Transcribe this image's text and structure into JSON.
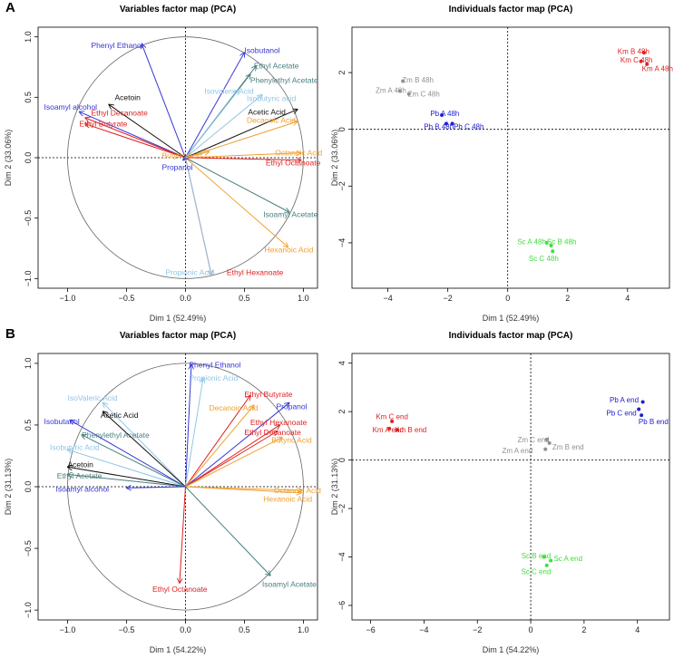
{
  "panels": [
    {
      "letter": "A"
    },
    {
      "letter": "B"
    }
  ],
  "chart_data": [
    {
      "id": "A-var",
      "type": "scatter",
      "kind": "variables",
      "title": "Variables factor map (PCA)",
      "xlabel": "Dim 1 (52.49%)",
      "ylabel": "Dim 2 (33.06%)",
      "xlim": [
        -1.25,
        1.12
      ],
      "ylim": [
        -1.08,
        1.08
      ],
      "xticks": [
        -1.0,
        -0.5,
        0.0,
        0.5,
        1.0
      ],
      "xtick_labels": [
        "−1.0",
        "−0.5",
        "0.0",
        "0.5",
        "1.0"
      ],
      "yticks": [
        -1.0,
        -0.5,
        0.0,
        0.5,
        1.0
      ],
      "ytick_labels": [
        "−1.0",
        "−0.5",
        "0.0",
        "0.5",
        "1.0"
      ],
      "circle": true,
      "arrows": [
        {
          "name": "Phenyl Ethanol",
          "x": -0.37,
          "y": 0.94,
          "color": "#3535d6",
          "lx": -0.8,
          "ly": 0.93
        },
        {
          "name": "Isobutanol",
          "x": 0.5,
          "y": 0.87,
          "color": "#3535d6",
          "lx": 0.5,
          "ly": 0.89
        },
        {
          "name": "Ethyl Acetate",
          "x": 0.6,
          "y": 0.76,
          "color": "#4a7f7f",
          "lx": 0.58,
          "ly": 0.76
        },
        {
          "name": "Phenylethyl Acetate",
          "x": 0.55,
          "y": 0.69,
          "color": "#4a7f7f",
          "lx": 0.55,
          "ly": 0.64
        },
        {
          "name": "Isovaleric Acid",
          "x": 0.45,
          "y": 0.56,
          "color": "#8fc6e6",
          "lx": 0.16,
          "ly": 0.55
        },
        {
          "name": "Isobutyric acid",
          "x": 0.65,
          "y": 0.52,
          "color": "#8fc6e6",
          "lx": 0.52,
          "ly": 0.49
        },
        {
          "name": "Acetic Acid",
          "x": 0.95,
          "y": 0.4,
          "color": "#111111",
          "lx": 0.53,
          "ly": 0.38
        },
        {
          "name": "Decanoic Acid",
          "x": 0.95,
          "y": 0.3,
          "color": "#f0a030",
          "lx": 0.52,
          "ly": 0.31
        },
        {
          "name": "Octanoic Acid",
          "x": 0.98,
          "y": 0.04,
          "color": "#f0a030",
          "lx": 0.76,
          "ly": 0.04
        },
        {
          "name": "Ethyl Octanoate",
          "x": 0.98,
          "y": -0.02,
          "color": "#e02020",
          "lx": 0.68,
          "ly": -0.04
        },
        {
          "name": "Isoamyl Acetate",
          "x": 0.88,
          "y": -0.45,
          "color": "#4a7f7f",
          "lx": 0.66,
          "ly": -0.47
        },
        {
          "name": "Hexanoic Acid",
          "x": 0.87,
          "y": -0.74,
          "color": "#f0a030",
          "lx": 0.67,
          "ly": -0.76
        },
        {
          "name": "Ethyl Hexanoate",
          "x": 0.22,
          "y": -0.97,
          "color": "#e02020",
          "lx": 0.35,
          "ly": -0.95
        },
        {
          "name": "Propionic Acid",
          "x": 0.22,
          "y": -0.97,
          "color": "#8fc6e6",
          "lx": -0.17,
          "ly": -0.95
        },
        {
          "name": "Acetoin",
          "x": -0.65,
          "y": 0.44,
          "color": "#111111",
          "lx": -0.6,
          "ly": 0.5
        },
        {
          "name": "Isoamyl alcohol",
          "x": -0.9,
          "y": 0.38,
          "color": "#3535d6",
          "lx": -1.2,
          "ly": 0.42
        },
        {
          "name": "Ethyl Decanoate",
          "x": -0.85,
          "y": 0.33,
          "color": "#e02020",
          "lx": -0.8,
          "ly": 0.37
        },
        {
          "name": "Ethyl Butyrate",
          "x": -0.85,
          "y": 0.28,
          "color": "#e02020",
          "lx": -0.9,
          "ly": 0.28
        },
        {
          "name": "Butyric Acid",
          "x": 0.2,
          "y": 0.05,
          "color": "#f0a030",
          "lx": -0.2,
          "ly": 0.02
        },
        {
          "name": "Propanol",
          "x": -0.02,
          "y": -0.02,
          "color": "#3535d6",
          "lx": -0.2,
          "ly": -0.08
        }
      ]
    },
    {
      "id": "A-ind",
      "type": "scatter",
      "kind": "individuals",
      "title": "Individuals factor map (PCA)",
      "xlabel": "Dim 1 (52.49%)",
      "ylabel": "Dim 2 (33.06%)",
      "xlim": [
        -5.2,
        5.4
      ],
      "ylim": [
        -5.6,
        3.6
      ],
      "xticks": [
        -4,
        -2,
        0,
        2,
        4
      ],
      "xtick_labels": [
        "−4",
        "−2",
        "0",
        "2",
        "4"
      ],
      "yticks": [
        -4,
        -2,
        0,
        2
      ],
      "ytick_labels": [
        "−4",
        "−2",
        "0",
        "2"
      ],
      "points": [
        {
          "name": "Km B 48h",
          "x": 4.55,
          "y": 2.7,
          "color": "#e02020",
          "lx": 4.2,
          "ly": 2.75
        },
        {
          "name": "Km C 48h",
          "x": 4.45,
          "y": 2.4,
          "color": "#e02020",
          "lx": 4.3,
          "ly": 2.45
        },
        {
          "name": "Km A 48h",
          "x": 4.65,
          "y": 2.3,
          "color": "#e02020",
          "lx": 5.0,
          "ly": 2.15
        },
        {
          "name": "Zm B 48h",
          "x": -3.5,
          "y": 1.7,
          "color": "#909090",
          "lx": -3.0,
          "ly": 1.75
        },
        {
          "name": "Zm A 48h",
          "x": -3.6,
          "y": 1.35,
          "color": "#909090",
          "lx": -3.9,
          "ly": 1.38
        },
        {
          "name": "Zm C 48h",
          "x": -3.3,
          "y": 1.25,
          "color": "#909090",
          "lx": -2.8,
          "ly": 1.25
        },
        {
          "name": "Pb A 48h",
          "x": -2.2,
          "y": 0.5,
          "color": "#2020d0",
          "lx": -2.1,
          "ly": 0.57
        },
        {
          "name": "Pb B 48h",
          "x": -2.05,
          "y": 0.2,
          "color": "#2020d0",
          "lx": -2.3,
          "ly": 0.1
        },
        {
          "name": "Pb C 48h",
          "x": -1.85,
          "y": 0.2,
          "color": "#2020d0",
          "lx": -1.3,
          "ly": 0.1
        },
        {
          "name": "Sc A 48h",
          "x": 1.3,
          "y": -4.0,
          "color": "#40dd40",
          "lx": 0.8,
          "ly": -3.95
        },
        {
          "name": "Sc B 48h",
          "x": 1.45,
          "y": -4.1,
          "color": "#40dd40",
          "lx": 1.8,
          "ly": -3.95
        },
        {
          "name": "Sc C 48h",
          "x": 1.5,
          "y": -4.3,
          "color": "#40dd40",
          "lx": 1.2,
          "ly": -4.55
        }
      ]
    },
    {
      "id": "B-var",
      "type": "scatter",
      "kind": "variables",
      "title": "Variables factor map (PCA)",
      "xlabel": "Dim 1 (54.22%)",
      "ylabel": "Dim 2 (31.13%)",
      "xlim": [
        -1.25,
        1.12
      ],
      "ylim": [
        -1.08,
        1.08
      ],
      "xticks": [
        -1.0,
        -0.5,
        0.0,
        0.5,
        1.0
      ],
      "xtick_labels": [
        "−1.0",
        "−0.5",
        "0.0",
        "0.5",
        "1.0"
      ],
      "yticks": [
        -1.0,
        -0.5,
        0.0,
        0.5,
        1.0
      ],
      "ytick_labels": [
        "−1.0",
        "−0.5",
        "0.0",
        "0.5",
        "1.0"
      ],
      "circle": true,
      "arrows": [
        {
          "name": "Phenyl Ethanol",
          "x": 0.05,
          "y": 0.99,
          "color": "#3535d6",
          "lx": 0.03,
          "ly": 0.99
        },
        {
          "name": "Propionic Acid",
          "x": 0.15,
          "y": 0.88,
          "color": "#8fc6e6",
          "lx": 0.03,
          "ly": 0.88
        },
        {
          "name": "Ethyl Butyrate",
          "x": 0.55,
          "y": 0.74,
          "color": "#e02020",
          "lx": 0.5,
          "ly": 0.75
        },
        {
          "name": "Decanoic Acid",
          "x": 0.58,
          "y": 0.66,
          "color": "#f0a030",
          "lx": 0.2,
          "ly": 0.64
        },
        {
          "name": "Propanol",
          "x": 0.88,
          "y": 0.68,
          "color": "#3535d6",
          "lx": 0.77,
          "ly": 0.65
        },
        {
          "name": "Ethyl Hexanoate",
          "x": 0.8,
          "y": 0.5,
          "color": "#e02020",
          "lx": 0.55,
          "ly": 0.52
        },
        {
          "name": "Ethyl Decanoate",
          "x": 0.78,
          "y": 0.45,
          "color": "#e02020",
          "lx": 0.5,
          "ly": 0.44
        },
        {
          "name": "Butyric Acid",
          "x": 0.82,
          "y": 0.4,
          "color": "#f0a030",
          "lx": 0.73,
          "ly": 0.38
        },
        {
          "name": "IsoValeric Acid",
          "x": -0.7,
          "y": 0.68,
          "color": "#8fc6e6",
          "lx": -1.0,
          "ly": 0.72
        },
        {
          "name": "Acetic Acid",
          "x": -0.7,
          "y": 0.61,
          "color": "#111111",
          "lx": -0.72,
          "ly": 0.58
        },
        {
          "name": "Isobutanol",
          "x": -0.98,
          "y": 0.54,
          "color": "#3535d6",
          "lx": -1.2,
          "ly": 0.53
        },
        {
          "name": "Phenylethyl Acetate",
          "x": -0.88,
          "y": 0.42,
          "color": "#4a7f7f",
          "lx": -0.88,
          "ly": 0.42
        },
        {
          "name": "Isobutyric Acid",
          "x": -1.0,
          "y": 0.3,
          "color": "#8fc6e6",
          "lx": -1.15,
          "ly": 0.32
        },
        {
          "name": "Acetoin",
          "x": -1.0,
          "y": 0.16,
          "color": "#111111",
          "lx": -1.0,
          "ly": 0.18
        },
        {
          "name": "Ethyl Acetate",
          "x": -1.0,
          "y": 0.1,
          "color": "#4a7f7f",
          "lx": -1.09,
          "ly": 0.09
        },
        {
          "name": "Isoamyl alcohol",
          "x": -0.5,
          "y": -0.01,
          "color": "#3535d6",
          "lx": -1.1,
          "ly": -0.02
        },
        {
          "name": "Octanoic Acid",
          "x": 0.99,
          "y": -0.03,
          "color": "#f0a030",
          "lx": 0.75,
          "ly": -0.03
        },
        {
          "name": "Hexanoic Acid",
          "x": 0.98,
          "y": -0.05,
          "color": "#f0a030",
          "lx": 0.66,
          "ly": -0.1
        },
        {
          "name": "Isoamyl Acetate",
          "x": 0.72,
          "y": -0.72,
          "color": "#4a7f7f",
          "lx": 0.65,
          "ly": -0.79
        },
        {
          "name": "Ethyl Octanoate",
          "x": -0.05,
          "y": -0.78,
          "color": "#e02020",
          "lx": -0.28,
          "ly": -0.83
        }
      ]
    },
    {
      "id": "B-ind",
      "type": "scatter",
      "kind": "individuals",
      "title": "Individuals factor map (PCA)",
      "xlabel": "Dim 1 (54.22%)",
      "ylabel": "Dim 2 (31.13%)",
      "xlim": [
        -6.7,
        5.2
      ],
      "ylim": [
        -6.6,
        4.4
      ],
      "xticks": [
        -6,
        -4,
        -2,
        0,
        2,
        4
      ],
      "xtick_labels": [
        "−6",
        "−4",
        "−2",
        "0",
        "2",
        "4"
      ],
      "yticks": [
        -6,
        -4,
        -2,
        0,
        2,
        4
      ],
      "ytick_labels": [
        "−6",
        "−4",
        "−2",
        "0",
        "2",
        "4"
      ],
      "points": [
        {
          "name": "Pb A end",
          "x": 4.2,
          "y": 2.4,
          "color": "#2020d0",
          "lx": 3.5,
          "ly": 2.5
        },
        {
          "name": "Pb C end",
          "x": 4.05,
          "y": 2.1,
          "color": "#2020d0",
          "lx": 3.4,
          "ly": 1.95
        },
        {
          "name": "Pb B end",
          "x": 4.15,
          "y": 1.85,
          "color": "#2020d0",
          "lx": 4.6,
          "ly": 1.6
        },
        {
          "name": "Km C end",
          "x": -5.2,
          "y": 1.6,
          "color": "#e02020",
          "lx": -5.2,
          "ly": 1.8
        },
        {
          "name": "Km A end",
          "x": -5.3,
          "y": 1.3,
          "color": "#e02020",
          "lx": -5.35,
          "ly": 1.25
        },
        {
          "name": "Km B end",
          "x": -5.0,
          "y": 1.25,
          "color": "#e02020",
          "lx": -4.5,
          "ly": 1.25
        },
        {
          "name": "Zm C end",
          "x": 0.6,
          "y": 0.85,
          "color": "#909090",
          "lx": 0.1,
          "ly": 0.85
        },
        {
          "name": "Zm A end",
          "x": 0.55,
          "y": 0.45,
          "color": "#909090",
          "lx": -0.5,
          "ly": 0.4
        },
        {
          "name": "Zm B end",
          "x": 0.7,
          "y": 0.7,
          "color": "#909090",
          "lx": 1.4,
          "ly": 0.55
        },
        {
          "name": "Sc B end",
          "x": 0.5,
          "y": -4.0,
          "color": "#40dd40",
          "lx": 0.2,
          "ly": -3.95
        },
        {
          "name": "Sc A end",
          "x": 0.75,
          "y": -4.15,
          "color": "#40dd40",
          "lx": 1.4,
          "ly": -4.05
        },
        {
          "name": "Sc C end",
          "x": 0.6,
          "y": -4.35,
          "color": "#40dd40",
          "lx": 0.2,
          "ly": -4.6
        }
      ]
    }
  ]
}
